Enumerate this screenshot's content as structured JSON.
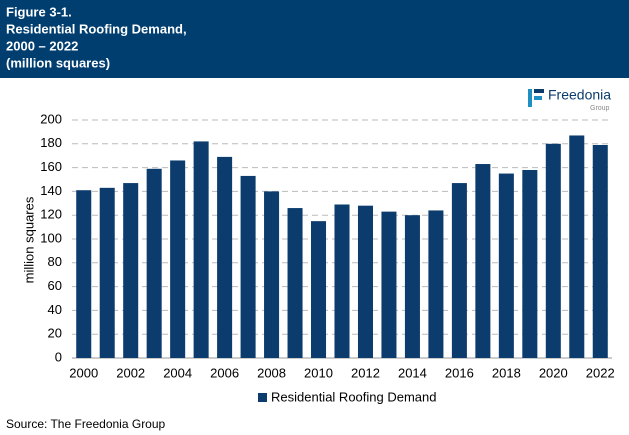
{
  "chart_data": {
    "type": "bar",
    "title": [
      "Figure 3-1.",
      "Residential Roofing Demand,",
      "2000 – 2022",
      "(million squares)"
    ],
    "logo": {
      "name": "Freedonia",
      "sub": "Group"
    },
    "y_label": "million squares",
    "categories": [
      "2000",
      null,
      "2002",
      null,
      "2004",
      null,
      "2006",
      null,
      "2008",
      null,
      "2010",
      null,
      "2012",
      null,
      "2014",
      null,
      "2016",
      null,
      "2018",
      null,
      "2020",
      null,
      "2022"
    ],
    "series": [
      {
        "name": "Residential Roofing Demand",
        "color": "#0b3c6d",
        "values": [
          141,
          143,
          147,
          159,
          166,
          182,
          169,
          153,
          140,
          126,
          115,
          129,
          128,
          123,
          120,
          124,
          147,
          163,
          155,
          158,
          180,
          187,
          179
        ]
      }
    ],
    "ylim": [
      0,
      200
    ],
    "yticks": [
      0,
      20,
      40,
      60,
      80,
      100,
      120,
      140,
      160,
      180,
      200
    ],
    "grid": true,
    "legend": "bottom",
    "source": "Source: The Freedonia Group"
  }
}
